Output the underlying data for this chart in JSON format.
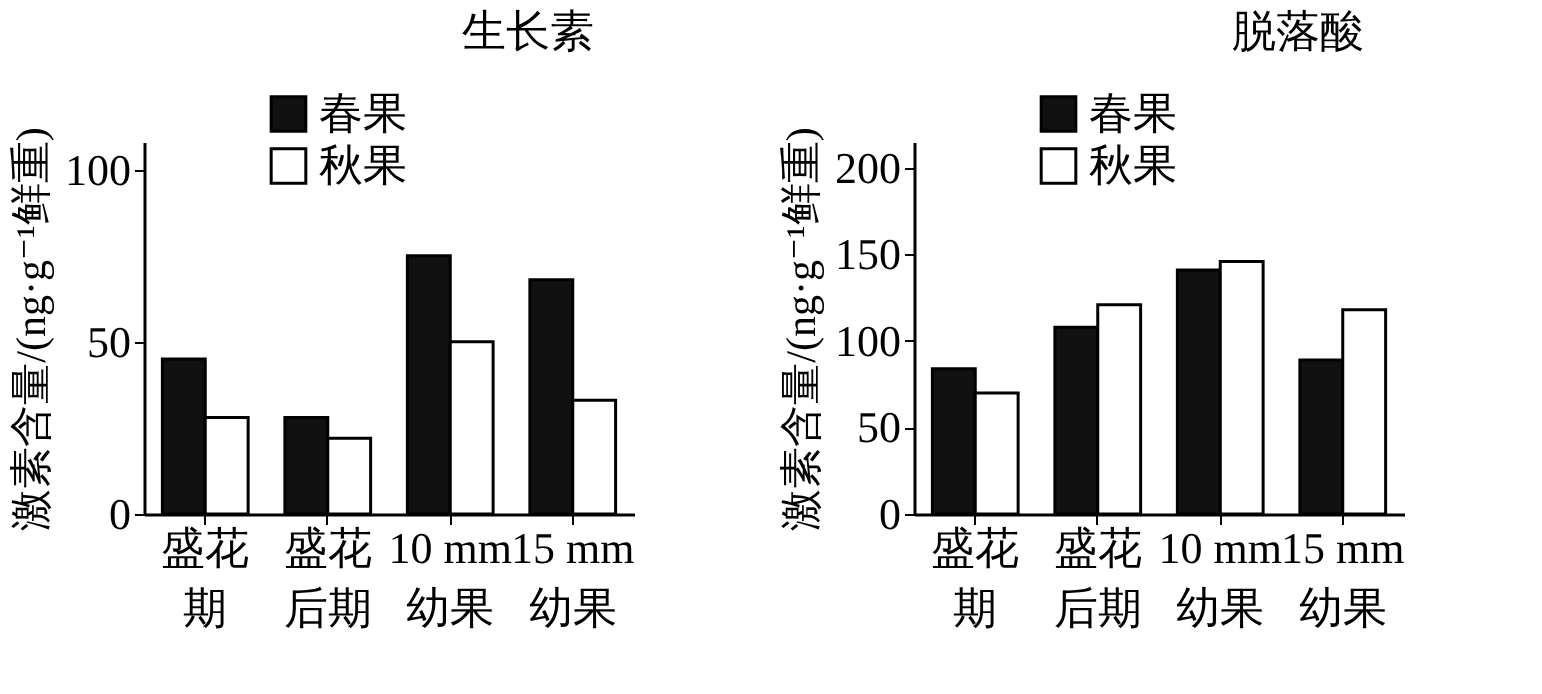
{
  "chart_data": [
    {
      "type": "bar",
      "title": "生长素",
      "ylabel": "激素含量/(ng·g⁻¹鲜重)",
      "categories": [
        "盛花期",
        "盛花后期",
        "10 mm幼果",
        "15 mm幼果"
      ],
      "series": [
        {
          "name": "春果",
          "color": "#111111",
          "values": [
            45,
            28,
            75,
            68
          ]
        },
        {
          "name": "秋果",
          "color": "#ffffff",
          "values": [
            28,
            22,
            50,
            33
          ]
        }
      ],
      "ylim": [
        0,
        108
      ],
      "yticks": [
        0,
        50,
        100
      ],
      "grid": false,
      "legend": "top left"
    },
    {
      "type": "bar",
      "title": "脱落酸",
      "ylabel": "激素含量/(ng·g⁻¹鲜重)",
      "categories": [
        "盛花期",
        "盛花后期",
        "10 mm幼果",
        "15 mm幼果"
      ],
      "series": [
        {
          "name": "春果",
          "color": "#111111",
          "values": [
            84,
            108,
            141,
            89
          ]
        },
        {
          "name": "秋果",
          "color": "#ffffff",
          "values": [
            70,
            121,
            146,
            118
          ]
        }
      ],
      "ylim": [
        0,
        215
      ],
      "yticks": [
        0,
        50,
        100,
        150,
        200
      ],
      "grid": false,
      "legend": "top left"
    }
  ]
}
